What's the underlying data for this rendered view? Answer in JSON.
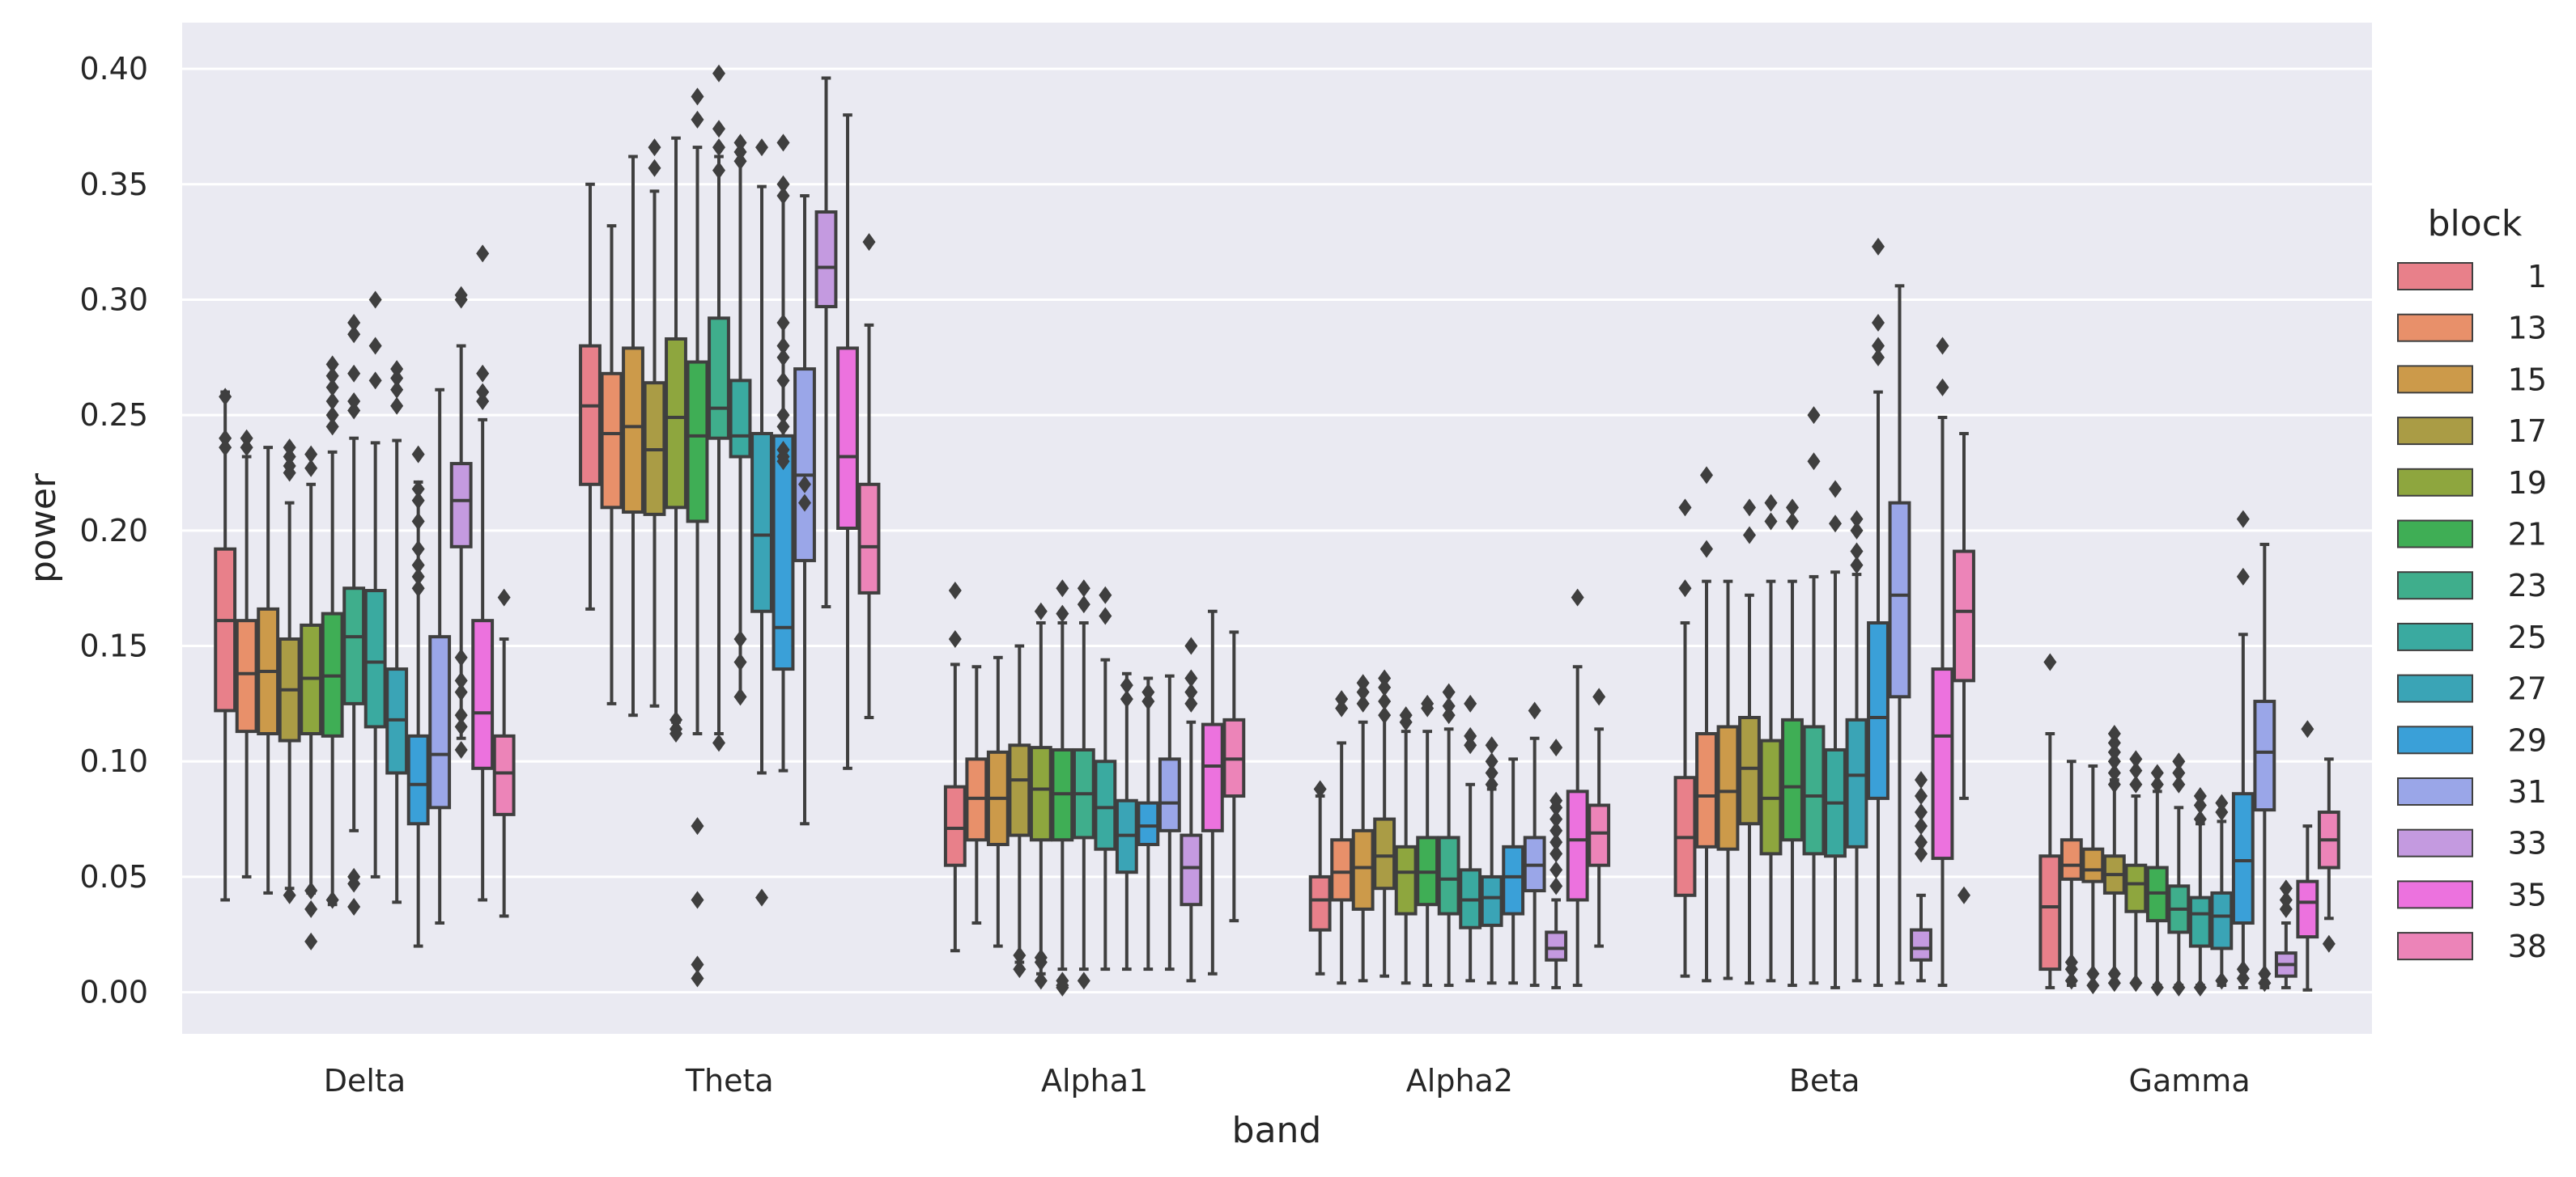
{
  "chart_data": {
    "type": "boxplot",
    "xlabel": "band",
    "ylabel": "power",
    "ylim": [
      -0.018,
      0.42
    ],
    "yticks": [
      0.0,
      0.05,
      0.1,
      0.15,
      0.2,
      0.25,
      0.3,
      0.35,
      0.4
    ],
    "ytick_labels": [
      "0.00",
      "0.05",
      "0.10",
      "0.15",
      "0.20",
      "0.25",
      "0.30",
      "0.35",
      "0.40"
    ],
    "grid": true,
    "background": "#eaeaf2",
    "legend_position": "right",
    "legend_title": "block",
    "categories": [
      "Delta",
      "Theta",
      "Alpha1",
      "Alpha2",
      "Beta",
      "Gamma"
    ],
    "series": [
      {
        "name": "1",
        "color": "#e8808a",
        "boxes": [
          [
            0.04,
            0.122,
            0.161,
            0.192,
            0.26
          ],
          [
            0.166,
            0.22,
            0.254,
            0.28,
            0.35
          ],
          [
            0.018,
            0.055,
            0.071,
            0.089,
            0.142
          ],
          [
            0.008,
            0.027,
            0.04,
            0.05,
            0.085
          ],
          [
            0.007,
            0.042,
            0.067,
            0.093,
            0.16
          ],
          [
            0.002,
            0.01,
            0.037,
            0.059,
            0.112
          ]
        ],
        "outliers": [
          [
            0.236,
            0.24,
            0.258
          ],
          [],
          [
            0.153,
            0.174
          ],
          [
            0.088
          ],
          [
            0.175,
            0.21
          ],
          [
            0.143
          ]
        ]
      },
      {
        "name": "13",
        "color": "#e8906a",
        "boxes": [
          [
            0.05,
            0.113,
            0.138,
            0.161,
            0.232
          ],
          [
            0.125,
            0.21,
            0.242,
            0.268,
            0.332
          ],
          [
            0.03,
            0.066,
            0.084,
            0.101,
            0.141
          ],
          [
            0.004,
            0.04,
            0.052,
            0.066,
            0.108
          ],
          [
            0.005,
            0.063,
            0.085,
            0.112,
            0.178
          ],
          [
            0.003,
            0.049,
            0.055,
            0.066,
            0.1
          ]
        ],
        "outliers": [
          [
            0.236,
            0.24
          ],
          [],
          [],
          [
            0.123,
            0.127
          ],
          [
            0.192,
            0.224
          ],
          [
            0.005,
            0.01,
            0.013
          ]
        ]
      },
      {
        "name": "15",
        "color": "#cc9a4a",
        "boxes": [
          [
            0.043,
            0.112,
            0.139,
            0.166,
            0.236
          ],
          [
            0.12,
            0.208,
            0.245,
            0.279,
            0.362
          ],
          [
            0.02,
            0.064,
            0.084,
            0.104,
            0.145
          ],
          [
            0.005,
            0.036,
            0.054,
            0.07,
            0.117
          ],
          [
            0.006,
            0.062,
            0.087,
            0.115,
            0.178
          ],
          [
            0.003,
            0.048,
            0.053,
            0.062,
            0.098
          ]
        ],
        "outliers": [
          [],
          [],
          [],
          [
            0.125,
            0.13,
            0.134
          ],
          [],
          [
            0.003,
            0.008
          ]
        ]
      },
      {
        "name": "17",
        "color": "#aa9c45",
        "boxes": [
          [
            0.045,
            0.109,
            0.131,
            0.153,
            0.212
          ],
          [
            0.124,
            0.207,
            0.235,
            0.264,
            0.347
          ],
          [
            0.013,
            0.068,
            0.092,
            0.107,
            0.15
          ],
          [
            0.007,
            0.045,
            0.059,
            0.075,
            0.12
          ],
          [
            0.004,
            0.073,
            0.097,
            0.119,
            0.172
          ],
          [
            0.004,
            0.043,
            0.051,
            0.059,
            0.092
          ]
        ],
        "outliers": [
          [
            0.042,
            0.225,
            0.228,
            0.232,
            0.236
          ],
          [
            0.357,
            0.366
          ],
          [
            0.016,
            0.01
          ],
          [
            0.12,
            0.126,
            0.132,
            0.136
          ],
          [
            0.198,
            0.21
          ],
          [
            0.004,
            0.008,
            0.09,
            0.095,
            0.1,
            0.104,
            0.108,
            0.112
          ]
        ]
      },
      {
        "name": "19",
        "color": "#8ea63e",
        "boxes": [
          [
            0.043,
            0.112,
            0.136,
            0.159,
            0.22
          ],
          [
            0.117,
            0.21,
            0.249,
            0.283,
            0.37
          ],
          [
            0.008,
            0.066,
            0.088,
            0.106,
            0.16
          ],
          [
            0.004,
            0.034,
            0.052,
            0.063,
            0.113
          ],
          [
            0.005,
            0.06,
            0.084,
            0.109,
            0.178
          ],
          [
            0.004,
            0.035,
            0.047,
            0.055,
            0.085
          ]
        ],
        "outliers": [
          [
            0.022,
            0.036,
            0.044,
            0.227,
            0.233
          ],
          [
            0.112,
            0.114,
            0.118
          ],
          [
            0.005,
            0.013,
            0.015,
            0.165
          ],
          [
            0.117,
            0.12
          ],
          [
            0.204,
            0.212
          ],
          [
            0.004,
            0.09,
            0.096,
            0.101
          ]
        ]
      },
      {
        "name": "21",
        "color": "#3fae55",
        "boxes": [
          [
            0.038,
            0.111,
            0.137,
            0.164,
            0.234
          ],
          [
            0.112,
            0.204,
            0.241,
            0.273,
            0.366
          ],
          [
            0.01,
            0.066,
            0.086,
            0.105,
            0.16
          ],
          [
            0.003,
            0.038,
            0.052,
            0.067,
            0.113
          ],
          [
            0.003,
            0.066,
            0.089,
            0.118,
            0.178
          ],
          [
            0.003,
            0.031,
            0.043,
            0.054,
            0.087
          ]
        ],
        "outliers": [
          [
            0.04,
            0.245,
            0.25,
            0.256,
            0.262,
            0.267,
            0.272
          ],
          [
            0.006,
            0.012,
            0.04,
            0.072,
            0.378,
            0.388
          ],
          [
            0.002,
            0.003,
            0.005,
            0.164,
            0.175
          ],
          [
            0.123,
            0.125
          ],
          [
            0.204,
            0.21
          ],
          [
            0.002,
            0.09,
            0.095
          ]
        ]
      },
      {
        "name": "23",
        "color": "#3fae8c",
        "boxes": [
          [
            0.07,
            0.125,
            0.154,
            0.175,
            0.24
          ],
          [
            0.112,
            0.24,
            0.253,
            0.292,
            0.362
          ],
          [
            0.01,
            0.067,
            0.086,
            0.105,
            0.16
          ],
          [
            0.003,
            0.034,
            0.049,
            0.067,
            0.114
          ],
          [
            0.004,
            0.06,
            0.085,
            0.115,
            0.18
          ],
          [
            0.003,
            0.026,
            0.036,
            0.046,
            0.08
          ]
        ],
        "outliers": [
          [
            0.037,
            0.047,
            0.05,
            0.252,
            0.256,
            0.268,
            0.285,
            0.29
          ],
          [
            0.108,
            0.356,
            0.366,
            0.374,
            0.398
          ],
          [
            0.005,
            0.168,
            0.175
          ],
          [
            0.12,
            0.124,
            0.13
          ],
          [
            0.23,
            0.25
          ],
          [
            0.002,
            0.09,
            0.095,
            0.1
          ]
        ]
      },
      {
        "name": "25",
        "color": "#3aaaa0",
        "boxes": [
          [
            0.05,
            0.115,
            0.143,
            0.174,
            0.238
          ],
          [
            0.128,
            0.232,
            0.241,
            0.265,
            0.36
          ],
          [
            0.01,
            0.062,
            0.08,
            0.1,
            0.144
          ],
          [
            0.005,
            0.028,
            0.04,
            0.053,
            0.09
          ],
          [
            0.002,
            0.059,
            0.082,
            0.105,
            0.182
          ],
          [
            0.003,
            0.02,
            0.034,
            0.041,
            0.073
          ]
        ],
        "outliers": [
          [
            0.265,
            0.28,
            0.3
          ],
          [
            0.128,
            0.143,
            0.153,
            0.36,
            0.364,
            0.368
          ],
          [
            0.163,
            0.172
          ],
          [
            0.107,
            0.111,
            0.125
          ],
          [
            0.203,
            0.218
          ],
          [
            0.002,
            0.075,
            0.081,
            0.085
          ]
        ]
      },
      {
        "name": "27",
        "color": "#3aa4b6",
        "boxes": [
          [
            0.039,
            0.095,
            0.118,
            0.14,
            0.239
          ],
          [
            0.095,
            0.165,
            0.198,
            0.242,
            0.349
          ],
          [
            0.01,
            0.052,
            0.068,
            0.083,
            0.138
          ],
          [
            0.004,
            0.029,
            0.041,
            0.05,
            0.088
          ],
          [
            0.005,
            0.063,
            0.094,
            0.118,
            0.181
          ],
          [
            0.003,
            0.019,
            0.033,
            0.043,
            0.074
          ]
        ],
        "outliers": [
          [
            0.254,
            0.261,
            0.266,
            0.27
          ],
          [
            0.041,
            0.366
          ],
          [
            0.127,
            0.133
          ],
          [
            0.09,
            0.095,
            0.1,
            0.107
          ],
          [
            0.185,
            0.191,
            0.2,
            0.205
          ],
          [
            0.005,
            0.078,
            0.082
          ]
        ]
      },
      {
        "name": "29",
        "color": "#3aa0d8",
        "boxes": [
          [
            0.02,
            0.073,
            0.09,
            0.111,
            0.221
          ],
          [
            0.096,
            0.14,
            0.158,
            0.241,
            0.345
          ],
          [
            0.01,
            0.064,
            0.072,
            0.082,
            0.136
          ],
          [
            0.004,
            0.034,
            0.05,
            0.063,
            0.101
          ],
          [
            0.003,
            0.084,
            0.119,
            0.16,
            0.26
          ],
          [
            0.002,
            0.03,
            0.057,
            0.086,
            0.155
          ]
        ],
        "outliers": [
          [
            0.175,
            0.18,
            0.185,
            0.192,
            0.204,
            0.213,
            0.218,
            0.233
          ],
          [
            0.23,
            0.232,
            0.235,
            0.245,
            0.25,
            0.265,
            0.275,
            0.28,
            0.29,
            0.345,
            0.35,
            0.368
          ],
          [
            0.126,
            0.13
          ],
          [],
          [
            0.275,
            0.28,
            0.29,
            0.323
          ],
          [
            0.006,
            0.01,
            0.18,
            0.205
          ]
        ]
      },
      {
        "name": "31",
        "color": "#9aa6e8",
        "boxes": [
          [
            0.03,
            0.08,
            0.103,
            0.154,
            0.261
          ],
          [
            0.073,
            0.187,
            0.224,
            0.27,
            0.345
          ],
          [
            0.01,
            0.07,
            0.082,
            0.101,
            0.137
          ],
          [
            0.003,
            0.044,
            0.055,
            0.067,
            0.11
          ],
          [
            0.004,
            0.128,
            0.172,
            0.212,
            0.306
          ],
          [
            0.002,
            0.079,
            0.104,
            0.126,
            0.194
          ]
        ],
        "outliers": [
          [],
          [
            0.212,
            0.22
          ],
          [],
          [
            0.122
          ],
          [],
          [
            0.004,
            0.008
          ]
        ]
      },
      {
        "name": "33",
        "color": "#c49ae0",
        "boxes": [
          [
            0.11,
            0.193,
            0.213,
            0.229,
            0.28
          ],
          [
            0.167,
            0.297,
            0.314,
            0.338,
            0.396
          ],
          [
            0.005,
            0.038,
            0.054,
            0.068,
            0.117
          ],
          [
            0.002,
            0.014,
            0.019,
            0.026,
            0.04
          ],
          [
            0.005,
            0.014,
            0.019,
            0.027,
            0.042
          ],
          [
            0.002,
            0.007,
            0.012,
            0.017,
            0.03
          ]
        ],
        "outliers": [
          [
            0.105,
            0.115,
            0.12,
            0.13,
            0.135,
            0.145,
            0.3,
            0.302
          ],
          [],
          [
            0.125,
            0.13,
            0.136,
            0.15
          ],
          [
            0.046,
            0.053,
            0.06,
            0.065,
            0.07,
            0.075,
            0.08,
            0.083,
            0.106
          ],
          [
            0.06,
            0.065,
            0.072,
            0.078,
            0.085,
            0.092
          ],
          [
            0.036,
            0.04,
            0.045
          ]
        ]
      },
      {
        "name": "35",
        "color": "#ec72de",
        "boxes": [
          [
            0.04,
            0.097,
            0.121,
            0.161,
            0.248
          ],
          [
            0.097,
            0.201,
            0.232,
            0.279,
            0.38
          ],
          [
            0.008,
            0.07,
            0.098,
            0.116,
            0.165
          ],
          [
            0.003,
            0.04,
            0.066,
            0.087,
            0.141
          ],
          [
            0.003,
            0.058,
            0.111,
            0.14,
            0.249
          ],
          [
            0.001,
            0.024,
            0.039,
            0.048,
            0.072
          ]
        ],
        "outliers": [
          [
            0.256,
            0.26,
            0.268,
            0.32
          ],
          [],
          [],
          [
            0.171
          ],
          [
            0.262,
            0.28
          ],
          [
            0.114
          ]
        ]
      },
      {
        "name": "38",
        "color": "#ec84b8",
        "boxes": [
          [
            0.033,
            0.077,
            0.095,
            0.111,
            0.153
          ],
          [
            0.119,
            0.173,
            0.193,
            0.22,
            0.289
          ],
          [
            0.031,
            0.085,
            0.101,
            0.118,
            0.156
          ],
          [
            0.02,
            0.055,
            0.069,
            0.081,
            0.114
          ],
          [
            0.084,
            0.135,
            0.165,
            0.191,
            0.242
          ],
          [
            0.032,
            0.054,
            0.066,
            0.078,
            0.101
          ]
        ],
        "outliers": [
          [
            0.171
          ],
          [
            0.325
          ],
          [],
          [
            0.128
          ],
          [
            0.042
          ],
          [
            0.021
          ]
        ]
      }
    ]
  }
}
